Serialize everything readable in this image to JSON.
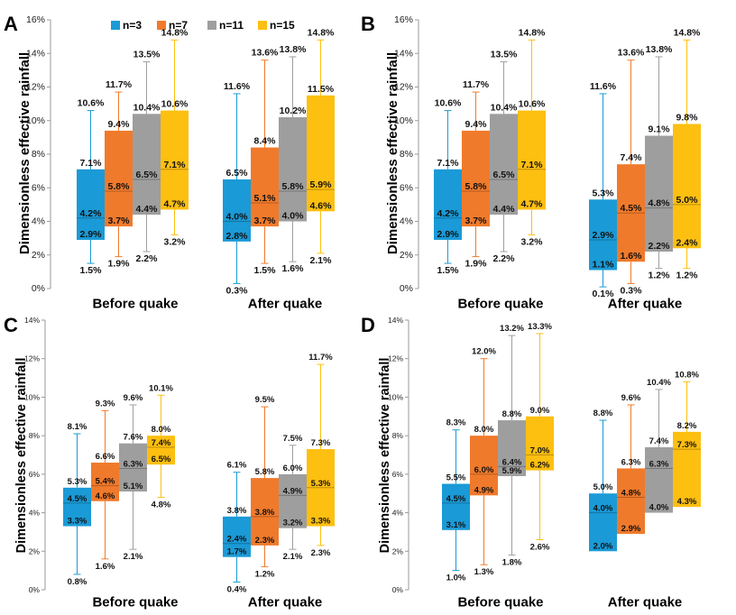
{
  "figure": {
    "ylabel": "Dimensionless effective rainfall",
    "groups": [
      "Before quake",
      "After quake"
    ],
    "legend": [
      {
        "label": "n=3",
        "color": "#1a9ad6"
      },
      {
        "label": "n=7",
        "color": "#f07a2b"
      },
      {
        "label": "n=11",
        "color": "#9e9e9e"
      },
      {
        "label": "n=15",
        "color": "#fdbf10"
      }
    ]
  },
  "chart_data": [
    {
      "panel": "A",
      "type": "box",
      "ylim": [
        0,
        16
      ],
      "yticks": [
        0,
        2,
        4,
        6,
        8,
        10,
        12,
        14,
        16
      ],
      "groups": [
        {
          "label": "Before quake",
          "boxes": [
            {
              "series": "n=3",
              "min": "1.5%",
              "q1": "2.9%",
              "median": "4.2%",
              "q3": "7.1%",
              "max": "10.6%"
            },
            {
              "series": "n=7",
              "min": "1.9%",
              "q1": "3.7%",
              "median": "5.8%",
              "q3": "9.4%",
              "max": "11.7%"
            },
            {
              "series": "n=11",
              "min": "2.2%",
              "q1": "4.4%",
              "median": "6.5%",
              "q3": "10.4%",
              "max": "13.5%"
            },
            {
              "series": "n=15",
              "min": "3.2%",
              "q1": "4.7%",
              "median": "7.1%",
              "q3": "10.6%",
              "max": "14.8%"
            }
          ]
        },
        {
          "label": "After quake",
          "boxes": [
            {
              "series": "n=3",
              "min": "0.3%",
              "q1": "2.8%",
              "median": "4.0%",
              "q3": "6.5%",
              "max": "11.6%"
            },
            {
              "series": "n=7",
              "min": "1.5%",
              "q1": "3.7%",
              "median": "5.1%",
              "q3": "8.4%",
              "max": "13.6%"
            },
            {
              "series": "n=11",
              "min": "1.6%",
              "q1": "4.0%",
              "median": "5.8%",
              "q3": "10.2%",
              "max": "13.8%"
            },
            {
              "series": "n=15",
              "min": "2.1%",
              "q1": "4.6%",
              "median": "5.9%",
              "q3": "11.5%",
              "max": "14.8%"
            }
          ]
        }
      ]
    },
    {
      "panel": "B",
      "type": "box",
      "ylim": [
        0,
        16
      ],
      "yticks": [
        0,
        2,
        4,
        6,
        8,
        10,
        12,
        14,
        16
      ],
      "groups": [
        {
          "label": "Before quake",
          "boxes": [
            {
              "series": "n=3",
              "min": "1.5%",
              "q1": "2.9%",
              "median": "4.2%",
              "q3": "7.1%",
              "max": "10.6%"
            },
            {
              "series": "n=7",
              "min": "1.9%",
              "q1": "3.7%",
              "median": "5.8%",
              "q3": "9.4%",
              "max": "11.7%"
            },
            {
              "series": "n=11",
              "min": "2.2%",
              "q1": "4.4%",
              "median": "6.5%",
              "q3": "10.4%",
              "max": "13.5%"
            },
            {
              "series": "n=15",
              "min": "3.2%",
              "q1": "4.7%",
              "median": "7.1%",
              "q3": "10.6%",
              "max": "14.8%"
            }
          ]
        },
        {
          "label": "After quake",
          "boxes": [
            {
              "series": "n=3",
              "min": "0.1%",
              "q1": "1.1%",
              "median": "2.9%",
              "q3": "5.3%",
              "max": "11.6%"
            },
            {
              "series": "n=7",
              "min": "0.3%",
              "q1": "1.6%",
              "median": "4.5%",
              "q3": "7.4%",
              "max": "13.6%"
            },
            {
              "series": "n=11",
              "min": "1.2%",
              "q1": "2.2%",
              "median": "4.8%",
              "q3": "9.1%",
              "max": "13.8%"
            },
            {
              "series": "n=15",
              "min": "1.2%",
              "q1": "2.4%",
              "median": "5.0%",
              "q3": "9.8%",
              "max": "14.8%"
            }
          ]
        }
      ]
    },
    {
      "panel": "C",
      "type": "box",
      "ylim": [
        0,
        14
      ],
      "yticks": [
        0,
        2,
        4,
        6,
        8,
        10,
        12,
        14
      ],
      "groups": [
        {
          "label": "Before quake",
          "boxes": [
            {
              "series": "n=3",
              "min": "0.8%",
              "q1": "3.3%",
              "median": "4.5%",
              "q3": "5.3%",
              "max": "8.1%"
            },
            {
              "series": "n=7",
              "min": "1.6%",
              "q1": "4.6%",
              "median": "5.4%",
              "q3": "6.6%",
              "max": "9.3%"
            },
            {
              "series": "n=11",
              "min": "2.1%",
              "q1": "5.1%",
              "median": "6.3%",
              "q3": "7.6%",
              "max": "9.6%"
            },
            {
              "series": "n=15",
              "min": "4.8%",
              "q1": "6.5%",
              "median": "7.4%",
              "q3": "8.0%",
              "max": "10.1%"
            }
          ]
        },
        {
          "label": "After quake",
          "boxes": [
            {
              "series": "n=3",
              "min": "0.4%",
              "q1": "1.7%",
              "median": "2.4%",
              "q3": "3.8%",
              "max": "6.1%"
            },
            {
              "series": "n=7",
              "min": "1.2%",
              "q1": "2.3%",
              "median": "3.8%",
              "q3": "5.8%",
              "max": "9.5%"
            },
            {
              "series": "n=11",
              "min": "2.1%",
              "q1": "3.2%",
              "median": "4.9%",
              "q3": "6.0%",
              "max": "7.5%"
            },
            {
              "series": "n=15",
              "min": "2.3%",
              "q1": "3.3%",
              "median": "5.3%",
              "q3": "7.3%",
              "max": "11.7%"
            }
          ]
        }
      ]
    },
    {
      "panel": "D",
      "type": "box",
      "ylim": [
        0,
        14
      ],
      "yticks": [
        0,
        2,
        4,
        6,
        8,
        10,
        12,
        14
      ],
      "groups": [
        {
          "label": "Before quake",
          "boxes": [
            {
              "series": "n=3",
              "min": "1.0%",
              "q1": "3.1%",
              "median": "4.5%",
              "q3": "5.5%",
              "max": "8.3%"
            },
            {
              "series": "n=7",
              "min": "1.3%",
              "q1": "4.9%",
              "median": "6.0%",
              "q3": "8.0%",
              "max": "12.0%"
            },
            {
              "series": "n=11",
              "min": "1.8%",
              "q1": "5.9%",
              "median": "6.4%",
              "q3": "8.8%",
              "max": "13.2%"
            },
            {
              "series": "n=15",
              "min": "2.6%",
              "q1": "6.2%",
              "median": "7.0%",
              "q3": "9.0%",
              "max": "13.3%"
            }
          ]
        },
        {
          "label": "After quake",
          "boxes": [
            {
              "series": "n=3",
              "min": "",
              "q1": "2.0%",
              "median": "4.0%",
              "q3": "5.0%",
              "max": "8.8%"
            },
            {
              "series": "n=7",
              "min": "",
              "q1": "2.9%",
              "median": "4.8%",
              "q3": "6.3%",
              "max": "9.6%"
            },
            {
              "series": "n=11",
              "min": "",
              "q1": "4.0%",
              "median": "6.3%",
              "q3": "7.4%",
              "max": "10.4%"
            },
            {
              "series": "n=15",
              "min": "",
              "q1": "4.3%",
              "median": "7.3%",
              "q3": "8.2%",
              "max": "10.8%"
            }
          ]
        }
      ]
    }
  ]
}
